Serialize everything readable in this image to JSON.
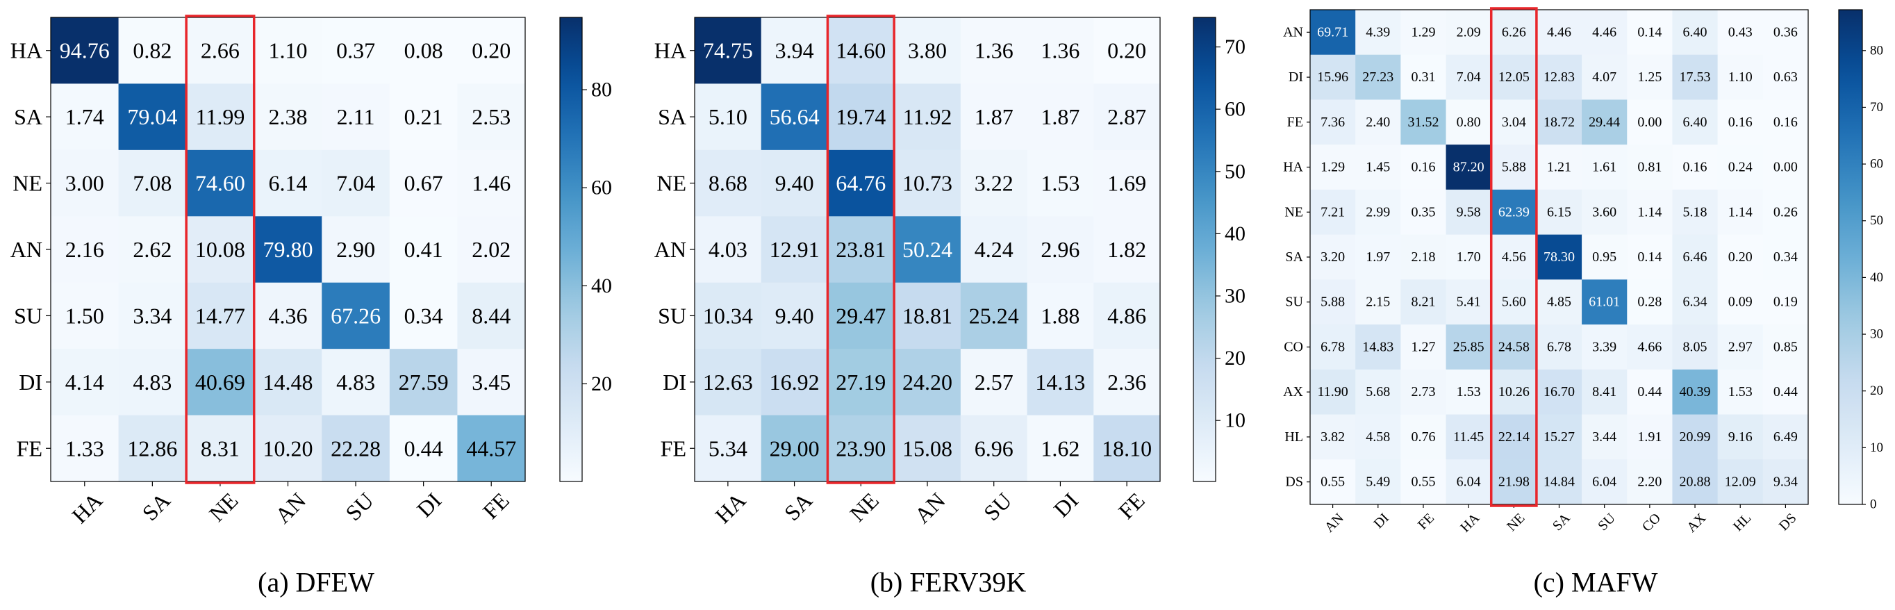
{
  "colors": {
    "low": "#f7fbff",
    "high": "#08306b",
    "highlight": "#e8262b",
    "dark_text": "#000000",
    "light_text": "#ffffff"
  },
  "chart_data": [
    {
      "type": "heatmap",
      "caption": "(a) DFEW",
      "rows": [
        "HA",
        "SA",
        "NE",
        "AN",
        "SU",
        "DI",
        "FE"
      ],
      "cols": [
        "HA",
        "SA",
        "NE",
        "AN",
        "SU",
        "DI",
        "FE"
      ],
      "values": [
        [
          94.76,
          0.82,
          2.66,
          1.1,
          0.37,
          0.08,
          0.2
        ],
        [
          1.74,
          79.04,
          11.99,
          2.38,
          2.11,
          0.21,
          2.53
        ],
        [
          3.0,
          7.08,
          74.6,
          6.14,
          7.04,
          0.67,
          1.46
        ],
        [
          2.16,
          2.62,
          10.08,
          79.8,
          2.9,
          0.41,
          2.02
        ],
        [
          1.5,
          3.34,
          14.77,
          4.36,
          67.26,
          0.34,
          8.44
        ],
        [
          4.14,
          4.83,
          40.69,
          14.48,
          4.83,
          27.59,
          3.45
        ],
        [
          1.33,
          12.86,
          8.31,
          10.2,
          22.28,
          0.44,
          44.57
        ]
      ],
      "zlim": [
        0.08,
        94.76
      ],
      "colorbar_ticks": [
        20,
        40,
        60,
        80
      ],
      "highlight_column": "NE"
    },
    {
      "type": "heatmap",
      "caption": "(b) FERV39K",
      "rows": [
        "HA",
        "SA",
        "NE",
        "AN",
        "SU",
        "DI",
        "FE"
      ],
      "cols": [
        "HA",
        "SA",
        "NE",
        "AN",
        "SU",
        "DI",
        "FE"
      ],
      "values": [
        [
          74.75,
          3.94,
          14.6,
          3.8,
          1.36,
          1.36,
          0.2
        ],
        [
          5.1,
          56.64,
          19.74,
          11.92,
          1.87,
          1.87,
          2.87
        ],
        [
          8.68,
          9.4,
          64.76,
          10.73,
          3.22,
          1.53,
          1.69
        ],
        [
          4.03,
          12.91,
          23.81,
          50.24,
          4.24,
          2.96,
          1.82
        ],
        [
          10.34,
          9.4,
          29.47,
          18.81,
          25.24,
          1.88,
          4.86
        ],
        [
          12.63,
          16.92,
          27.19,
          24.2,
          2.57,
          14.13,
          2.36
        ],
        [
          5.34,
          29.0,
          23.9,
          15.08,
          6.96,
          1.62,
          18.1
        ]
      ],
      "zlim": [
        0.2,
        74.75
      ],
      "colorbar_ticks": [
        10,
        20,
        30,
        40,
        50,
        60,
        70
      ],
      "highlight_column": "NE"
    },
    {
      "type": "heatmap",
      "caption": "(c) MAFW",
      "rows": [
        "AN",
        "DI",
        "FE",
        "HA",
        "NE",
        "SA",
        "SU",
        "CO",
        "AX",
        "HL",
        "DS"
      ],
      "cols": [
        "AN",
        "DI",
        "FE",
        "HA",
        "NE",
        "SA",
        "SU",
        "CO",
        "AX",
        "HL",
        "DS"
      ],
      "values": [
        [
          69.71,
          4.39,
          1.29,
          2.09,
          6.26,
          4.46,
          4.46,
          0.14,
          6.4,
          0.43,
          0.36
        ],
        [
          15.96,
          27.23,
          0.31,
          7.04,
          12.05,
          12.83,
          4.07,
          1.25,
          17.53,
          1.1,
          0.63
        ],
        [
          7.36,
          2.4,
          31.52,
          0.8,
          3.04,
          18.72,
          29.44,
          0.0,
          6.4,
          0.16,
          0.16
        ],
        [
          1.29,
          1.45,
          0.16,
          87.2,
          5.88,
          1.21,
          1.61,
          0.81,
          0.16,
          0.24,
          0.0
        ],
        [
          7.21,
          2.99,
          0.35,
          9.58,
          62.39,
          6.15,
          3.6,
          1.14,
          5.18,
          1.14,
          0.26
        ],
        [
          3.2,
          1.97,
          2.18,
          1.7,
          4.56,
          78.3,
          0.95,
          0.14,
          6.46,
          0.2,
          0.34
        ],
        [
          5.88,
          2.15,
          8.21,
          5.41,
          5.6,
          4.85,
          61.01,
          0.28,
          6.34,
          0.09,
          0.19
        ],
        [
          6.78,
          14.83,
          1.27,
          25.85,
          24.58,
          6.78,
          3.39,
          4.66,
          8.05,
          2.97,
          0.85
        ],
        [
          11.9,
          5.68,
          2.73,
          1.53,
          10.26,
          16.7,
          8.41,
          0.44,
          40.39,
          1.53,
          0.44
        ],
        [
          3.82,
          4.58,
          0.76,
          11.45,
          22.14,
          15.27,
          3.44,
          1.91,
          20.99,
          9.16,
          6.49
        ],
        [
          0.55,
          5.49,
          0.55,
          6.04,
          21.98,
          14.84,
          6.04,
          2.2,
          20.88,
          12.09,
          9.34
        ]
      ],
      "zlim": [
        0.0,
        87.2
      ],
      "colorbar_ticks": [
        0,
        10,
        20,
        30,
        40,
        50,
        60,
        70,
        80
      ],
      "highlight_column": "NE"
    }
  ]
}
